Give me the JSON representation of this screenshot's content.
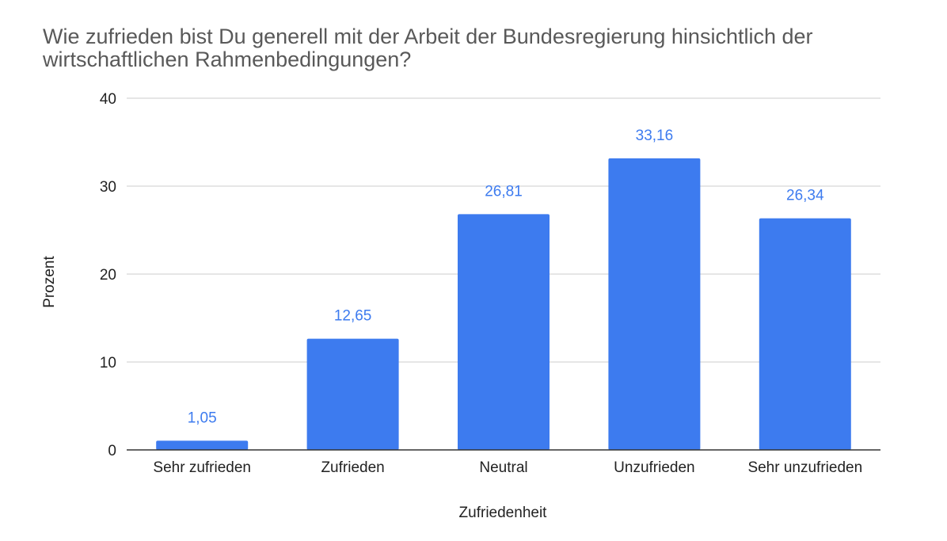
{
  "chart_data": {
    "type": "bar",
    "title": "Wie zufrieden bist Du generell mit der Arbeit der Bundesregierung hinsichtlich der wirtschaftlichen Rahmenbedingungen?",
    "xlabel": "Zufriedenheit",
    "ylabel": "Prozent",
    "categories": [
      "Sehr zufrieden",
      "Zufrieden",
      "Neutral",
      "Unzufrieden",
      "Sehr unzufrieden"
    ],
    "values": [
      1.05,
      12.65,
      26.81,
      33.16,
      26.34
    ],
    "data_labels": [
      "1,05",
      "12,65",
      "26,81",
      "33,16",
      "26,34"
    ],
    "yticks": [
      0,
      10,
      20,
      30,
      40
    ],
    "ylim": [
      0,
      40
    ],
    "grid": true,
    "legend": "none",
    "colors": {
      "bar": "#3d7bef",
      "data_label": "#3d7bef",
      "gridline": "#cccccc",
      "baseline": "#333333",
      "title": "#595959"
    }
  }
}
